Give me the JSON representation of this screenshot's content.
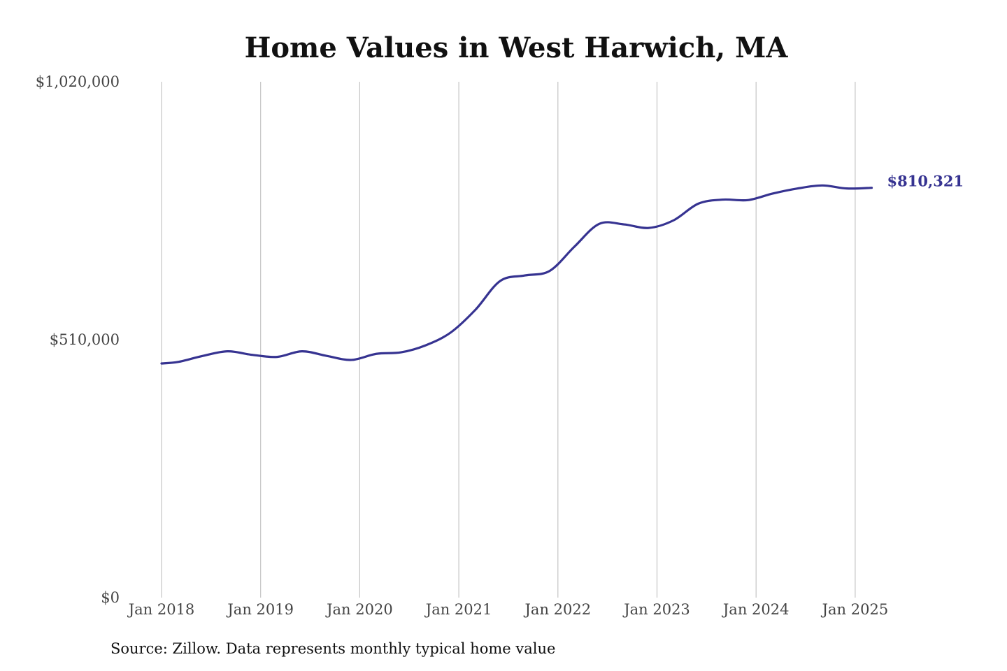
{
  "chart_data": {
    "type": "line",
    "title": "Home Values in West Harwich, MA",
    "xlabel": "",
    "ylabel": "",
    "source": "Source: Zillow. Data represents monthly typical home value",
    "y_ticks": [
      "$1,020,000",
      "$510,000",
      "$0"
    ],
    "y_tick_values": [
      1020000,
      510000,
      0
    ],
    "ylim": [
      0,
      1020000
    ],
    "x_tick_labels": [
      "Jan 2018",
      "Jan 2019",
      "Jan 2020",
      "Jan 2021",
      "Jan 2022",
      "Jan 2023",
      "Jan 2024",
      "Jan 2025"
    ],
    "x_tick_years": [
      2018,
      2019,
      2020,
      2021,
      2022,
      2023,
      2024,
      2025
    ],
    "grid": {
      "vertical": true,
      "horizontal": false
    },
    "line_color": "#363391",
    "end_label": "$810,321",
    "series": [
      {
        "x": [
          "2018-01",
          "2018-03",
          "2018-06",
          "2018-09",
          "2018-12",
          "2019-03",
          "2019-06",
          "2019-09",
          "2019-12",
          "2020-03",
          "2020-06",
          "2020-09",
          "2020-12",
          "2021-03",
          "2021-06",
          "2021-09",
          "2021-12",
          "2022-03",
          "2022-06",
          "2022-09",
          "2022-12",
          "2023-03",
          "2023-06",
          "2023-09",
          "2023-12",
          "2024-03",
          "2024-06",
          "2024-09",
          "2024-12",
          "2025-03"
        ],
        "values": [
          463000,
          466000,
          478000,
          487000,
          480000,
          476000,
          487000,
          478000,
          470000,
          482000,
          485000,
          499000,
          524000,
          569000,
          626000,
          637000,
          646000,
          694000,
          739000,
          738000,
          731000,
          746000,
          779000,
          787000,
          786000,
          799000,
          809000,
          815000,
          809000,
          810321
        ]
      }
    ]
  }
}
